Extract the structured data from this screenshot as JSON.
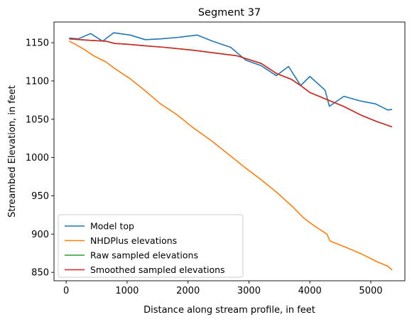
{
  "chart_data": {
    "type": "line",
    "title": "Segment 37",
    "xlabel": "Distance along stream profile, in feet",
    "ylabel": "Streambed Elevation, in feet",
    "xlim": [
      -200,
      5560
    ],
    "ylim": [
      839,
      1177
    ],
    "xticks": [
      0,
      1000,
      2000,
      3000,
      4000,
      5000
    ],
    "yticks": [
      850,
      900,
      950,
      1000,
      1050,
      1100,
      1150
    ],
    "grid": false,
    "legend_position": "lower-left",
    "series": [
      {
        "name": "Model top",
        "color": "#1f77b4",
        "x": [
          50,
          200,
          400,
          600,
          780,
          1050,
          1300,
          1550,
          1850,
          2150,
          2400,
          2700,
          2950,
          3200,
          3450,
          3650,
          3850,
          4000,
          4250,
          4320,
          4560,
          4820,
          5080,
          5280,
          5350
        ],
        "y": [
          1156,
          1155,
          1162,
          1152,
          1163,
          1160,
          1154,
          1155,
          1157,
          1160,
          1152,
          1144,
          1127,
          1120,
          1107,
          1119,
          1094,
          1106,
          1088,
          1067,
          1080,
          1074,
          1070,
          1062,
          1063
        ]
      },
      {
        "name": "NHDPlus elevations",
        "color": "#ff7f0e",
        "x": [
          50,
          150,
          300,
          450,
          650,
          800,
          1050,
          1300,
          1550,
          1800,
          2100,
          2400,
          2700,
          2950,
          3200,
          3450,
          3700,
          3900,
          4050,
          4280,
          4330,
          4580,
          4850,
          5100,
          5280,
          5350
        ],
        "y": [
          1152,
          1148,
          1141,
          1133,
          1125,
          1116,
          1103,
          1087,
          1070,
          1057,
          1038,
          1021,
          1002,
          986,
          971,
          955,
          937,
          921,
          912,
          900,
          891,
          883,
          874,
          864,
          858,
          853
        ]
      },
      {
        "name": "Raw sampled elevations",
        "color": "#2ca02c",
        "x": [
          50,
          400,
          650,
          800,
          1000,
          1300,
          1600,
          2100,
          2500,
          2800,
          3200,
          3450,
          3700,
          3850,
          4000,
          4300,
          4550,
          4850,
          5100,
          5350
        ],
        "y": [
          1155,
          1153,
          1152,
          1149,
          1148,
          1146,
          1144,
          1140,
          1136,
          1133,
          1123,
          1110,
          1102,
          1094,
          1085,
          1075,
          1067,
          1055,
          1047,
          1040
        ]
      },
      {
        "name": "Smoothed sampled elevations",
        "color": "#d62728",
        "x": [
          50,
          400,
          650,
          800,
          1000,
          1300,
          1600,
          2100,
          2500,
          2800,
          3200,
          3450,
          3700,
          3850,
          4000,
          4300,
          4550,
          4850,
          5100,
          5350
        ],
        "y": [
          1155,
          1153,
          1152,
          1149,
          1148,
          1146,
          1144,
          1140,
          1136,
          1133,
          1123,
          1110,
          1102,
          1094,
          1085,
          1075,
          1067,
          1055,
          1047,
          1040
        ]
      }
    ]
  }
}
